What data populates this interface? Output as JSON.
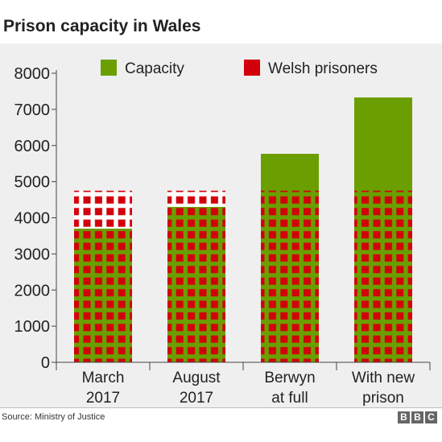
{
  "title": "Prison capacity in Wales",
  "source": "Source: Ministry of Justice",
  "brand": [
    "B",
    "B",
    "C"
  ],
  "colors": {
    "capacity": "#6b9e00",
    "prisoners": "#d2000b",
    "background": "#efefef"
  },
  "chart_data": {
    "type": "bar",
    "title": "Prison capacity in Wales",
    "categories": [
      [
        "March",
        "2017"
      ],
      [
        "August",
        "2017"
      ],
      [
        "Berwyn",
        "at full"
      ],
      [
        "With new",
        "prison"
      ]
    ],
    "series": [
      {
        "name": "Capacity",
        "values": [
          3700,
          4300,
          5770,
          7330
        ]
      },
      {
        "name": "Welsh prisoners",
        "values": [
          4750,
          4750,
          4750,
          4750
        ]
      }
    ],
    "yticks": [
      0,
      1000,
      2000,
      3000,
      4000,
      5000,
      6000,
      7000,
      8000
    ],
    "ylim": [
      0,
      8000
    ],
    "legend": "top",
    "grid": false
  }
}
